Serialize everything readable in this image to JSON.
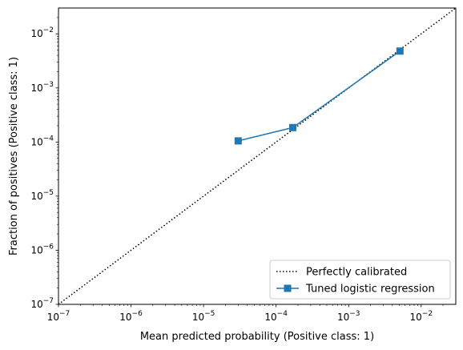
{
  "chart_data": {
    "type": "line",
    "xlabel": "Mean predicted probability (Positive class: 1)",
    "ylabel": "Fraction of positives (Positive class: 1)",
    "xscale": "log",
    "yscale": "log",
    "xlim": [
      1e-07,
      0.03
    ],
    "ylim": [
      1e-07,
      0.03
    ],
    "grid": false,
    "legend_position": "lower-right",
    "x_ticks": [
      {
        "value": 1e-07,
        "base": "10",
        "exp": "−7"
      },
      {
        "value": 1e-06,
        "base": "10",
        "exp": "−6"
      },
      {
        "value": 1e-05,
        "base": "10",
        "exp": "−5"
      },
      {
        "value": 0.0001,
        "base": "10",
        "exp": "−4"
      },
      {
        "value": 0.001,
        "base": "10",
        "exp": "−3"
      },
      {
        "value": 0.01,
        "base": "10",
        "exp": "−2"
      }
    ],
    "y_ticks": [
      {
        "value": 1e-07,
        "base": "10",
        "exp": "−7"
      },
      {
        "value": 1e-06,
        "base": "10",
        "exp": "−6"
      },
      {
        "value": 1e-05,
        "base": "10",
        "exp": "−5"
      },
      {
        "value": 0.0001,
        "base": "10",
        "exp": "−4"
      },
      {
        "value": 0.001,
        "base": "10",
        "exp": "−3"
      },
      {
        "value": 0.01,
        "base": "10",
        "exp": "−2"
      }
    ],
    "series": [
      {
        "name": "Perfectly calibrated",
        "style": "dotted",
        "color": "#000000",
        "x": [
          1e-07,
          0.03
        ],
        "y": [
          1e-07,
          0.03
        ]
      },
      {
        "name": "Tuned logistic regression",
        "style": "solid",
        "marker": "square",
        "color": "#1f77b4",
        "x": [
          3e-05,
          0.00017,
          0.0051
        ],
        "y": [
          0.000105,
          0.000185,
          0.0048
        ]
      }
    ]
  }
}
